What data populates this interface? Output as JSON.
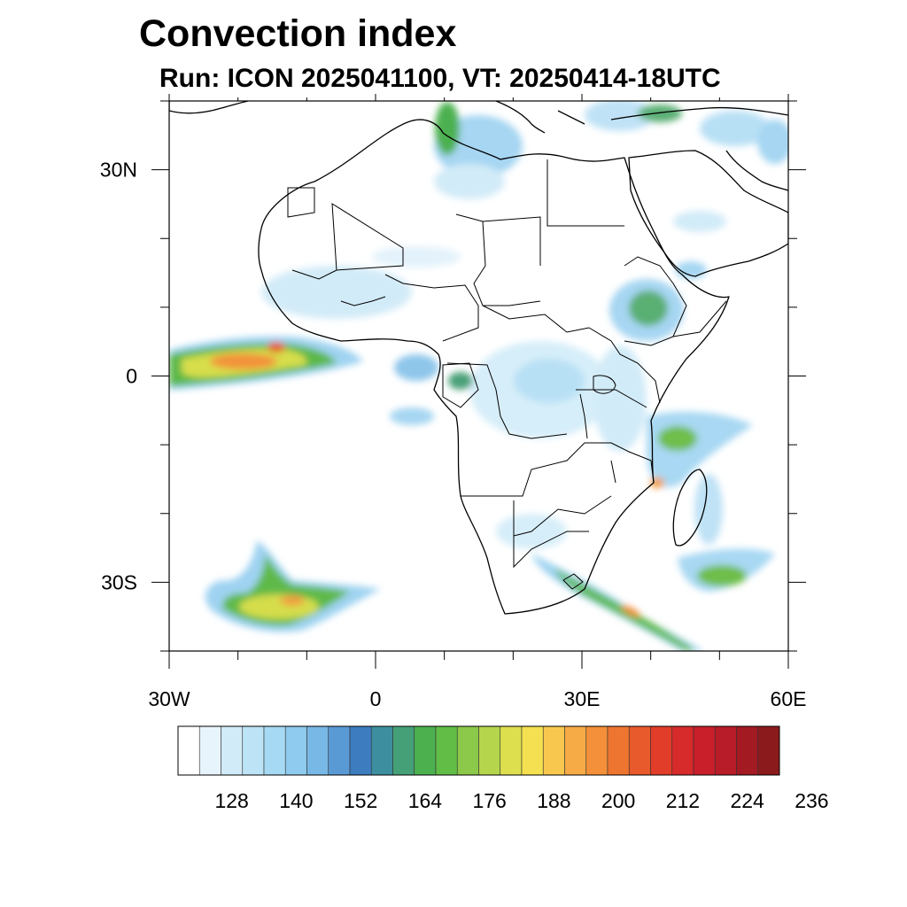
{
  "title": "Convection index",
  "subtitle": "Run: ICON 2025041100,  VT: 20250414-18UTC",
  "map": {
    "region": "Africa",
    "lon_range": [
      -30,
      60
    ],
    "lat_range": [
      -40,
      40
    ],
    "x_ticks": [
      {
        "lon": -30,
        "label": "30W"
      },
      {
        "lon": 0,
        "label": "0"
      },
      {
        "lon": 30,
        "label": "30E"
      },
      {
        "lon": 60,
        "label": "60E"
      }
    ],
    "y_ticks": [
      {
        "lat": 30,
        "label": "30N"
      },
      {
        "lat": 0,
        "label": "0"
      },
      {
        "lat": -30,
        "label": "30S"
      }
    ]
  },
  "colorbar": {
    "colors": [
      "#ffffff",
      "#e8f4fb",
      "#d2ebf8",
      "#bde3f6",
      "#a6d9f3",
      "#8ecbee",
      "#78b8e6",
      "#5a9ad4",
      "#3d7dbf",
      "#3d8f9f",
      "#45a077",
      "#4cb04f",
      "#62bd47",
      "#8cc84a",
      "#b5d54d",
      "#dedf4e",
      "#f4e050",
      "#f8c84e",
      "#f7ab46",
      "#f39039",
      "#ee7530",
      "#e85a2b",
      "#e13d29",
      "#d62a2b",
      "#c81f2b",
      "#b71c28",
      "#a31a22",
      "#8b1a1c"
    ],
    "labels": [
      "128",
      "140",
      "152",
      "164",
      "176",
      "188",
      "200",
      "212",
      "224",
      "236"
    ]
  }
}
